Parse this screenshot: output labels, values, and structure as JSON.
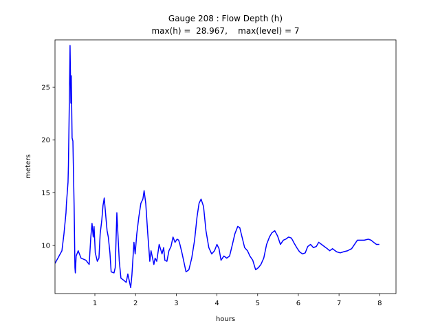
{
  "chart_data": {
    "type": "line",
    "title": "Gauge 208 : Flow Depth (h)",
    "subtitle": "max(h) =  28.967,    max(level) = 7",
    "x_label": "hours",
    "y_label": "meters",
    "xlim": [
      0.02,
      8.4
    ],
    "ylim": [
      5.44,
      29.5
    ],
    "xticks": [
      1,
      2,
      3,
      4,
      5,
      6,
      7,
      8
    ],
    "yticks": [
      10,
      15,
      20,
      25
    ],
    "grid": false,
    "x": [
      0.02,
      0.19,
      0.24,
      0.29,
      0.3,
      0.34,
      0.35,
      0.37,
      0.39,
      0.41,
      0.42,
      0.44,
      0.46,
      0.47,
      0.49,
      0.51,
      0.52,
      0.54,
      0.59,
      0.66,
      0.78,
      0.86,
      0.9,
      0.93,
      0.96,
      0.98,
      1.01,
      1.06,
      1.1,
      1.13,
      1.17,
      1.2,
      1.23,
      1.27,
      1.3,
      1.33,
      1.37,
      1.4,
      1.47,
      1.5,
      1.54,
      1.57,
      1.6,
      1.64,
      1.71,
      1.77,
      1.81,
      1.88,
      1.91,
      1.96,
      1.99,
      2.03,
      2.08,
      2.13,
      2.18,
      2.21,
      2.25,
      2.3,
      2.35,
      2.38,
      2.45,
      2.48,
      2.52,
      2.58,
      2.65,
      2.69,
      2.72,
      2.77,
      2.82,
      2.87,
      2.92,
      2.97,
      3.02,
      3.06,
      3.09,
      3.14,
      3.19,
      3.24,
      3.31,
      3.38,
      3.45,
      3.51,
      3.56,
      3.61,
      3.67,
      3.73,
      3.8,
      3.87,
      3.94,
      4.0,
      4.05,
      4.1,
      4.17,
      4.24,
      4.31,
      4.38,
      4.44,
      4.51,
      4.56,
      4.61,
      4.68,
      4.75,
      4.81,
      4.88,
      4.95,
      5.02,
      5.08,
      5.15,
      5.22,
      5.29,
      5.35,
      5.42,
      5.49,
      5.56,
      5.63,
      5.69,
      5.76,
      5.83,
      5.9,
      5.96,
      6.03,
      6.1,
      6.17,
      6.23,
      6.3,
      6.37,
      6.44,
      6.5,
      6.57,
      6.64,
      6.71,
      6.77,
      6.84,
      6.94,
      7.03,
      7.11,
      7.21,
      7.31,
      7.38,
      7.45,
      7.53,
      7.62,
      7.72,
      7.79,
      7.85,
      7.92,
      7.99
    ],
    "series": [
      {
        "name": "h",
        "color": "#0000ff",
        "values": [
          8.3,
          9.5,
          11.1,
          13.1,
          13.9,
          16.0,
          17.6,
          23.0,
          28.967,
          23.5,
          26.1,
          20.2,
          19.9,
          17.8,
          13.7,
          7.9,
          7.4,
          9.0,
          9.5,
          8.8,
          8.6,
          8.2,
          10.8,
          12.1,
          10.8,
          11.8,
          9.3,
          8.5,
          8.8,
          11.1,
          12.4,
          13.8,
          14.5,
          12.7,
          11.4,
          10.8,
          9.3,
          7.5,
          7.4,
          7.9,
          13.1,
          10.8,
          8.5,
          6.9,
          6.7,
          6.5,
          7.3,
          6.0,
          7.2,
          10.3,
          9.2,
          11.1,
          12.7,
          14.0,
          14.4,
          15.2,
          14.0,
          11.1,
          8.5,
          9.5,
          8.2,
          8.8,
          8.5,
          10.1,
          9.2,
          9.8,
          8.6,
          8.5,
          9.5,
          9.9,
          10.8,
          10.3,
          10.6,
          10.5,
          10.1,
          9.3,
          8.4,
          7.5,
          7.7,
          8.8,
          10.5,
          12.7,
          14.0,
          14.4,
          13.7,
          11.4,
          9.8,
          9.2,
          9.5,
          10.1,
          9.7,
          8.6,
          9.0,
          8.8,
          9.0,
          10.1,
          11.1,
          11.8,
          11.7,
          10.9,
          9.8,
          9.5,
          9.0,
          8.6,
          7.7,
          7.9,
          8.2,
          8.8,
          10.1,
          10.8,
          11.2,
          11.4,
          10.9,
          10.1,
          10.5,
          10.6,
          10.8,
          10.7,
          10.2,
          9.8,
          9.4,
          9.2,
          9.3,
          9.9,
          10.1,
          9.8,
          9.9,
          10.3,
          10.1,
          9.9,
          9.7,
          9.5,
          9.7,
          9.4,
          9.3,
          9.4,
          9.5,
          9.7,
          10.1,
          10.5,
          10.5,
          10.5,
          10.6,
          10.5,
          10.3,
          10.1,
          10.1
        ]
      }
    ]
  }
}
